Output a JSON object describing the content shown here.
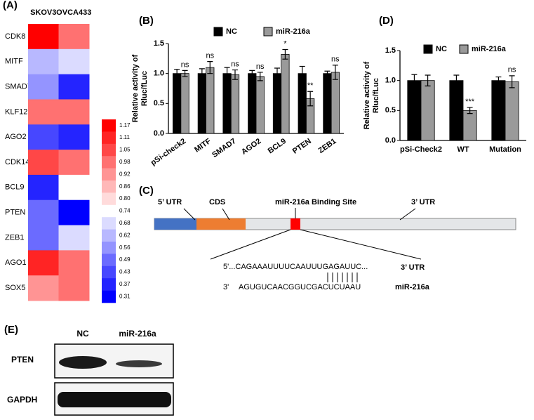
{
  "chart_data": [
    {
      "type": "heatmap",
      "panel_label": "(A)",
      "columns": [
        "SKOV3",
        "OVCA433"
      ],
      "rows": [
        "CDK8",
        "MITF",
        "SMAD7",
        "KLF12",
        "AGO2",
        "CDK14",
        "BCL9",
        "PTEN",
        "ZEB1",
        "AGO1",
        "SOX5"
      ],
      "values": [
        [
          1.17,
          0.98
        ],
        [
          0.62,
          0.68
        ],
        [
          0.56,
          0.37
        ],
        [
          0.98,
          0.98
        ],
        [
          0.43,
          0.37
        ],
        [
          1.05,
          0.98
        ],
        [
          0.37,
          0.74
        ],
        [
          0.49,
          0.31
        ],
        [
          0.49,
          0.68
        ],
        [
          1.11,
          0.98
        ],
        [
          0.92,
          0.98
        ]
      ],
      "zlim": [
        0.31,
        1.17
      ],
      "colormap": [
        "#0000ff",
        "#ffffff",
        "#ff0000"
      ],
      "colormap_mid": 0.74,
      "colorbar_ticks": [
        1.17,
        1.11,
        1.05,
        0.98,
        0.92,
        0.86,
        {
          "value": 0.8,
          "label": "0.80"
        },
        0.74,
        0.68,
        0.62,
        0.56,
        0.49,
        0.43,
        0.37,
        0.31
      ]
    },
    {
      "type": "bar",
      "panel_label": "(B)",
      "ylabel": [
        "Relative activity of",
        "Rluc/fLuc"
      ],
      "categories": [
        "pSi-check2",
        "MITF",
        "SMAD7",
        "AGO2",
        "BCL9",
        "PTEN",
        "ZEB1"
      ],
      "series": [
        {
          "name": "NC",
          "color": "#000000",
          "values": [
            1,
            1,
            1,
            1,
            1,
            1,
            1
          ],
          "errors": [
            0.07,
            0.08,
            0.1,
            0.05,
            0.09,
            0.12,
            0.04
          ]
        },
        {
          "name": "miR-216a",
          "color": "#9a9a9a",
          "values": [
            1.0,
            1.1,
            0.98,
            0.95,
            1.32,
            0.58,
            1.02
          ],
          "errors": [
            0.05,
            0.1,
            0.08,
            0.07,
            0.08,
            0.12,
            0.12
          ],
          "annotations": [
            "ns",
            "ns",
            "ns",
            "ns",
            "*",
            "**",
            "ns"
          ]
        }
      ],
      "ylim": [
        0,
        1.5
      ],
      "yticks": [
        {
          "value": 0,
          "label": "0.0"
        },
        {
          "value": 0.5,
          "label": "0.5"
        },
        {
          "value": 1,
          "label": "1.0"
        },
        {
          "value": 1.5,
          "label": "1.5"
        }
      ],
      "legend": "top",
      "rotate_labels": true
    },
    {
      "type": "bar",
      "panel_label": "(D)",
      "ylabel": [
        "Relative activity of",
        "Rluc/fLuc"
      ],
      "categories": [
        "pSi-Check2",
        "WT",
        "Mutation"
      ],
      "series": [
        {
          "name": "NC",
          "color": "#000000",
          "values": [
            1,
            1,
            1
          ],
          "errors": [
            0.1,
            0.09,
            0.06
          ]
        },
        {
          "name": "miR-216a",
          "color": "#9a9a9a",
          "values": [
            1.0,
            0.5,
            0.98
          ],
          "errors": [
            0.09,
            0.05,
            0.1
          ],
          "annotations": [
            null,
            "***",
            "ns"
          ]
        }
      ],
      "ylim": [
        0,
        1.5
      ],
      "yticks": [
        {
          "value": 0,
          "label": "0.0"
        },
        {
          "value": 0.5,
          "label": "0.5"
        },
        {
          "value": 1,
          "label": "1.0"
        },
        {
          "value": 1.5,
          "label": "1.5"
        }
      ],
      "legend": "top",
      "rotate_labels": false
    }
  ],
  "diagram": {
    "panel_label": "(C)",
    "utr5": "5’ UTR",
    "cds": "CDS",
    "site": "miR-216a Binding Site",
    "utr3": "3’ UTR",
    "seq_top": "5'...CAGAAAUUUUCAAUUUGAGAUUC...",
    "seq_top_label": "3’ UTR",
    "seq_bottom_end": "3'",
    "seq_bottom": "AGUGUCAACGGUCGACUCUAAU",
    "seq_bottom_label": "miR-216a"
  },
  "blot": {
    "panel_label": "(E)",
    "lanes": [
      "NC",
      "miR-216a"
    ],
    "proteins": [
      "PTEN",
      "GAPDH"
    ]
  }
}
